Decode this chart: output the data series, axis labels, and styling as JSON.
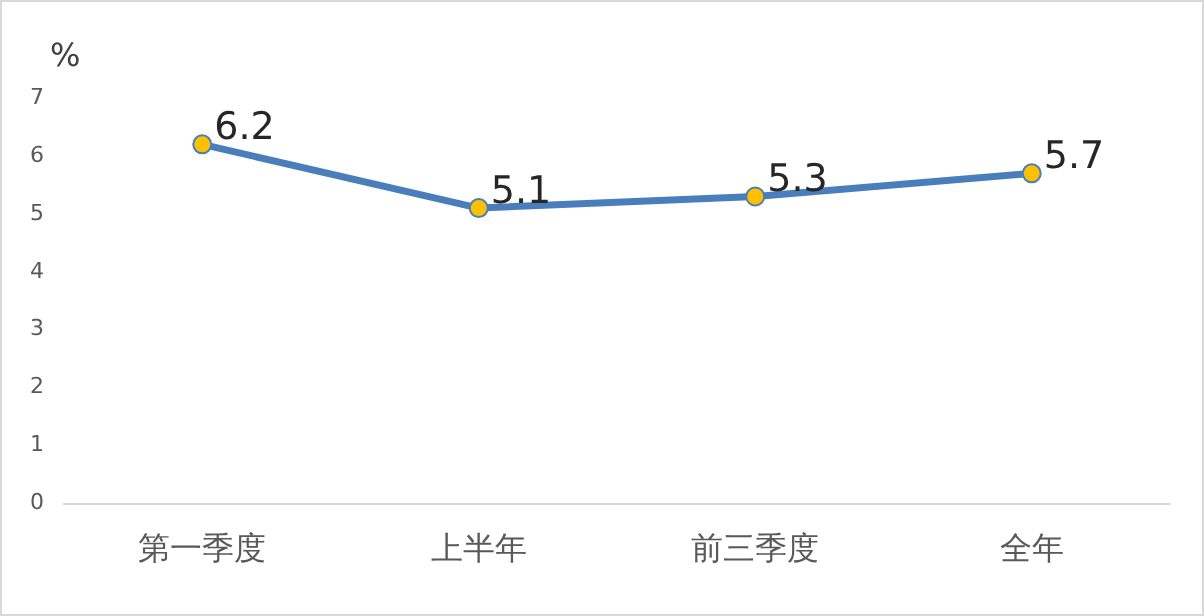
{
  "chart_data": {
    "type": "line",
    "ylabel": "%",
    "categories": [
      "第一季度",
      "上半年",
      "前三季度",
      "全年"
    ],
    "series": [
      {
        "color": "#4a7ebb",
        "colors": [
          "#ffc000",
          "#ffc000",
          "#ffc000",
          "#ffc000"
        ],
        "values": [
          6.2,
          5.1,
          5.3,
          5.7
        ]
      }
    ],
    "ylim": [
      0,
      7
    ],
    "yticks": [
      0,
      1,
      2,
      3,
      4,
      5,
      6,
      7
    ],
    "grid": false,
    "legend": false,
    "marker": "circle",
    "line_style": "solid",
    "data_labels": true
  }
}
